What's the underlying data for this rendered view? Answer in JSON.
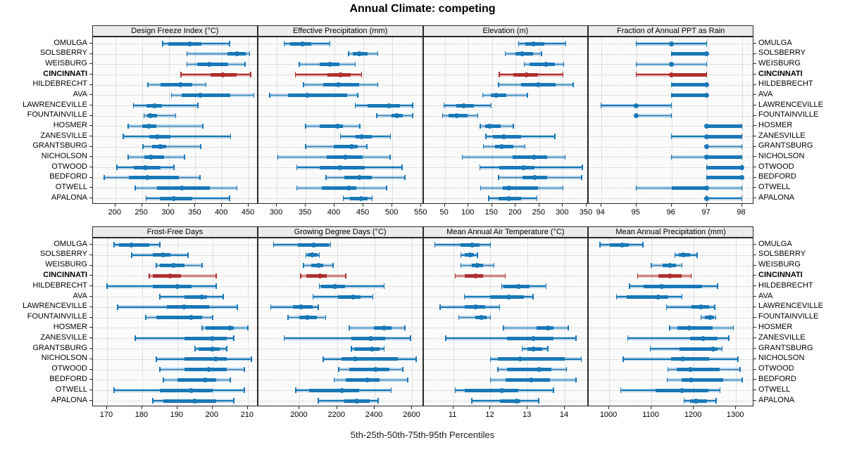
{
  "chart_data": {
    "type": "dotplot",
    "title": "Annual Climate: competing",
    "percentile_labels": "5th-25th-50th-75th-95th Percentiles",
    "legend_position": "none",
    "grid": "dotted",
    "highlight_city": "CINCINNATI",
    "colors": {
      "series": "#1878b8",
      "highlight": "#b03030",
      "grid": "#c4c4c4",
      "strip_bg": "#ececec",
      "panel_bg": "#fbfbfb",
      "border": "#2a2a2a"
    },
    "cities": [
      "OMULGA",
      "SOLSBERRY",
      "WEISBURG",
      "CINCINNATI",
      "HILDEBRECHT",
      "AVA",
      "LAWRENCEVILLE",
      "FOUNTAINVILLE",
      "HOSMER",
      "ZANESVILLE",
      "GRANTSBURG",
      "NICHOLSON",
      "OTWOOD",
      "BEDFORD",
      "OTWELL",
      "APALONA"
    ],
    "panels": [
      {
        "id": "design-freeze-index",
        "title": "Design Freeze Index (°C)",
        "row": 0,
        "col": 0,
        "ticks": [
          200,
          250,
          300,
          350,
          400,
          450
        ],
        "xlim": [
          158,
          468
        ],
        "percentiles": [
          [
            289,
            299,
            339,
            362,
            414
          ],
          [
            334,
            410,
            428,
            444,
            452
          ],
          [
            334,
            353,
            376,
            412,
            443
          ],
          [
            323,
            379,
            402,
            427,
            454
          ],
          [
            261,
            285,
            322,
            344,
            370
          ],
          [
            305,
            325,
            360,
            415,
            460
          ],
          [
            234,
            258,
            274,
            287,
            355
          ],
          [
            254,
            260,
            266,
            278,
            313
          ],
          [
            224,
            250,
            263,
            277,
            364
          ],
          [
            215,
            264,
            279,
            303,
            416
          ],
          [
            252,
            269,
            284,
            296,
            360
          ],
          [
            224,
            255,
            267,
            292,
            330
          ],
          [
            203,
            235,
            257,
            285,
            310
          ],
          [
            179,
            226,
            260,
            319,
            359
          ],
          [
            237,
            278,
            325,
            377,
            428
          ],
          [
            258,
            283,
            309,
            344,
            414
          ]
        ]
      },
      {
        "id": "effective-precipitation",
        "title": "Effective Precipitation (mm)",
        "row": 0,
        "col": 1,
        "ticks": [
          300,
          350,
          400,
          450,
          500,
          550
        ],
        "xlim": [
          268,
          554
        ],
        "percentiles": [
          [
            313,
            323,
            345,
            360,
            392
          ],
          [
            424,
            431,
            443,
            457,
            475
          ],
          [
            339,
            374,
            392,
            408,
            436
          ],
          [
            332,
            388,
            410,
            428,
            447
          ],
          [
            346,
            380,
            406,
            442,
            475
          ],
          [
            288,
            319,
            353,
            422,
            440
          ],
          [
            436,
            457,
            494,
            513,
            535
          ],
          [
            473,
            498,
            508,
            518,
            535
          ],
          [
            350,
            374,
            405,
            415,
            444
          ],
          [
            410,
            437,
            447,
            465,
            497
          ],
          [
            350,
            399,
            430,
            440,
            456
          ],
          [
            302,
            386,
            419,
            449,
            496
          ],
          [
            335,
            374,
            409,
            452,
            517
          ],
          [
            385,
            417,
            443,
            465,
            522
          ],
          [
            335,
            378,
            425,
            438,
            490
          ],
          [
            415,
            427,
            446,
            457,
            465
          ]
        ]
      },
      {
        "id": "elevation",
        "title": "Elevation (m)",
        "row": 0,
        "col": 2,
        "ticks": [
          50,
          100,
          150,
          200,
          250,
          300,
          350
        ],
        "xlim": [
          5,
          355
        ],
        "percentiles": [
          [
            206,
            220,
            238,
            260,
            306
          ],
          [
            178,
            199,
            213,
            237,
            255
          ],
          [
            218,
            230,
            265,
            283,
            302
          ],
          [
            165,
            195,
            222,
            247,
            300
          ],
          [
            164,
            212,
            248,
            285,
            322
          ],
          [
            130,
            147,
            158,
            180,
            225
          ],
          [
            48,
            74,
            90,
            112,
            148
          ],
          [
            45,
            58,
            75,
            98,
            120
          ],
          [
            125,
            135,
            145,
            168,
            195
          ],
          [
            137,
            152,
            175,
            212,
            283
          ],
          [
            132,
            157,
            170,
            195,
            220
          ],
          [
            87,
            193,
            239,
            267,
            305
          ],
          [
            124,
            166,
            217,
            240,
            341
          ],
          [
            164,
            215,
            240,
            267,
            340
          ],
          [
            126,
            172,
            185,
            248,
            300
          ],
          [
            143,
            164,
            185,
            212,
            245
          ]
        ]
      },
      {
        "id": "fraction-ppt-as-rain",
        "title": "Fraction of Annual PPT as Rain",
        "row": 0,
        "col": 3,
        "ticks": [
          94,
          95,
          96,
          97,
          98
        ],
        "xlim": [
          93.65,
          98.35
        ],
        "percentiles": [
          [
            95,
            96,
            96,
            96,
            97
          ],
          [
            96,
            96,
            97,
            97,
            97
          ],
          [
            95,
            96,
            96,
            96,
            97
          ],
          [
            95,
            96,
            96,
            97,
            97
          ],
          [
            96,
            96,
            97,
            97,
            97
          ],
          [
            96,
            96,
            97,
            97,
            97
          ],
          [
            94,
            95,
            95,
            95,
            96
          ],
          [
            95,
            95,
            95,
            95,
            96
          ],
          [
            97,
            97,
            97,
            98,
            98
          ],
          [
            96,
            97,
            97,
            98,
            98
          ],
          [
            97,
            97,
            97,
            97,
            98
          ],
          [
            96,
            97,
            97,
            98,
            98
          ],
          [
            97,
            97,
            98,
            98,
            98
          ],
          [
            97,
            97,
            98,
            98,
            98
          ],
          [
            95,
            96,
            97,
            97,
            98
          ],
          [
            97,
            97,
            97,
            97,
            98
          ]
        ]
      },
      {
        "id": "frost-free-days",
        "title": "Frost-Free Days",
        "row": 1,
        "col": 0,
        "ticks": [
          170,
          180,
          190,
          200,
          210
        ],
        "xlim": [
          166,
          213
        ],
        "percentiles": [
          [
            172,
            173.5,
            177,
            182,
            185
          ],
          [
            177,
            183,
            186,
            188,
            193
          ],
          [
            184,
            185,
            189,
            192,
            197
          ],
          [
            182,
            183,
            188,
            191,
            201
          ],
          [
            170,
            183,
            190,
            194,
            201
          ],
          [
            185,
            192,
            197,
            198.5,
            203
          ],
          [
            173,
            187,
            192,
            199,
            207
          ],
          [
            181,
            184,
            194,
            197,
            200
          ],
          [
            197,
            198,
            205,
            206,
            210
          ],
          [
            178,
            192,
            200,
            204,
            206
          ],
          [
            195,
            196,
            200,
            202,
            204
          ],
          [
            184,
            192,
            201,
            204,
            211
          ],
          [
            185,
            192,
            199,
            204,
            209
          ],
          [
            186,
            190,
            198,
            201,
            205
          ],
          [
            172,
            185,
            194,
            200,
            209
          ],
          [
            183,
            186,
            195,
            201,
            206
          ]
        ]
      },
      {
        "id": "growing-degree-days",
        "title": "Growing Degree Days (°C)",
        "row": 1,
        "col": 1,
        "ticks": [
          2000,
          2200,
          2400,
          2600
        ],
        "xlim": [
          1780,
          2660
        ],
        "percentiles": [
          [
            1862,
            1990,
            2075,
            2155,
            2165
          ],
          [
            2034,
            2043,
            2068,
            2096,
            2105
          ],
          [
            2021,
            2063,
            2100,
            2125,
            2178
          ],
          [
            2005,
            2034,
            2109,
            2143,
            2246
          ],
          [
            2105,
            2113,
            2188,
            2243,
            2450
          ],
          [
            2071,
            2203,
            2284,
            2325,
            2390
          ],
          [
            1846,
            1963,
            2009,
            2068,
            2100
          ],
          [
            1938,
            2000,
            2043,
            2093,
            2138
          ],
          [
            2265,
            2395,
            2450,
            2490,
            2560
          ],
          [
            1918,
            2275,
            2380,
            2455,
            2590
          ],
          [
            2275,
            2290,
            2388,
            2425,
            2450
          ],
          [
            2125,
            2225,
            2296,
            2525,
            2620
          ],
          [
            2209,
            2263,
            2405,
            2478,
            2550
          ],
          [
            2184,
            2246,
            2359,
            2425,
            2575
          ],
          [
            1980,
            2050,
            2225,
            2318,
            2488
          ],
          [
            2100,
            2238,
            2305,
            2375,
            2418
          ]
        ]
      },
      {
        "id": "mean-annual-air-temperature",
        "title": "Mean Annual Air Temperature (°C)",
        "row": 1,
        "col": 2,
        "ticks": [
          11,
          12,
          13,
          14
        ],
        "xlim": [
          10.2,
          14.65
        ],
        "percentiles": [
          [
            10.5,
            11.2,
            11.5,
            11.7,
            12.0
          ],
          [
            11.2,
            11.3,
            11.45,
            11.55,
            11.65
          ],
          [
            11.2,
            11.5,
            11.65,
            11.8,
            12.1
          ],
          [
            11.05,
            11.3,
            11.6,
            11.8,
            12.4
          ],
          [
            12.3,
            12.35,
            12.75,
            13.05,
            13.5
          ],
          [
            11.3,
            12.0,
            12.5,
            12.9,
            13.15
          ],
          [
            10.65,
            11.3,
            11.6,
            11.85,
            12.25
          ],
          [
            11.15,
            11.6,
            11.75,
            11.9,
            12.0
          ],
          [
            12.35,
            13.25,
            13.55,
            13.7,
            14.1
          ],
          [
            10.8,
            12.45,
            13.15,
            13.7,
            14.3
          ],
          [
            12.85,
            13.0,
            13.15,
            13.4,
            13.55
          ],
          [
            12.0,
            12.2,
            12.8,
            14.0,
            14.45
          ],
          [
            12.2,
            12.45,
            13.3,
            13.65,
            14.05
          ],
          [
            12.0,
            12.4,
            13.1,
            13.6,
            14.3
          ],
          [
            11.05,
            11.3,
            12.3,
            12.75,
            13.7
          ],
          [
            11.5,
            12.25,
            12.7,
            12.8,
            13.3
          ]
        ]
      },
      {
        "id": "mean-annual-precipitation",
        "title": "Mean Annual Precipitation (mm)",
        "row": 1,
        "col": 3,
        "ticks": [
          1000,
          1100,
          1200,
          1300
        ],
        "xlim": [
          952,
          1343
        ],
        "percentiles": [
          [
            978,
            1002,
            1030,
            1047,
            1080
          ],
          [
            1156,
            1165,
            1176,
            1191,
            1208
          ],
          [
            1100,
            1126,
            1144,
            1158,
            1172
          ],
          [
            1067,
            1117,
            1144,
            1172,
            1194
          ],
          [
            1048,
            1082,
            1124,
            1219,
            1256
          ],
          [
            1017,
            1041,
            1115,
            1139,
            1172
          ],
          [
            1136,
            1194,
            1217,
            1236,
            1250
          ],
          [
            1217,
            1226,
            1239,
            1248,
            1252
          ],
          [
            1143,
            1161,
            1189,
            1244,
            1294
          ],
          [
            1044,
            1191,
            1222,
            1256,
            1283
          ],
          [
            1097,
            1167,
            1245,
            1256,
            1267
          ],
          [
            1033,
            1147,
            1174,
            1236,
            1305
          ],
          [
            1139,
            1160,
            1192,
            1262,
            1310
          ],
          [
            1137,
            1172,
            1194,
            1269,
            1315
          ],
          [
            1027,
            1110,
            1172,
            1235,
            1262
          ],
          [
            1177,
            1191,
            1205,
            1232,
            1253
          ]
        ]
      }
    ]
  }
}
